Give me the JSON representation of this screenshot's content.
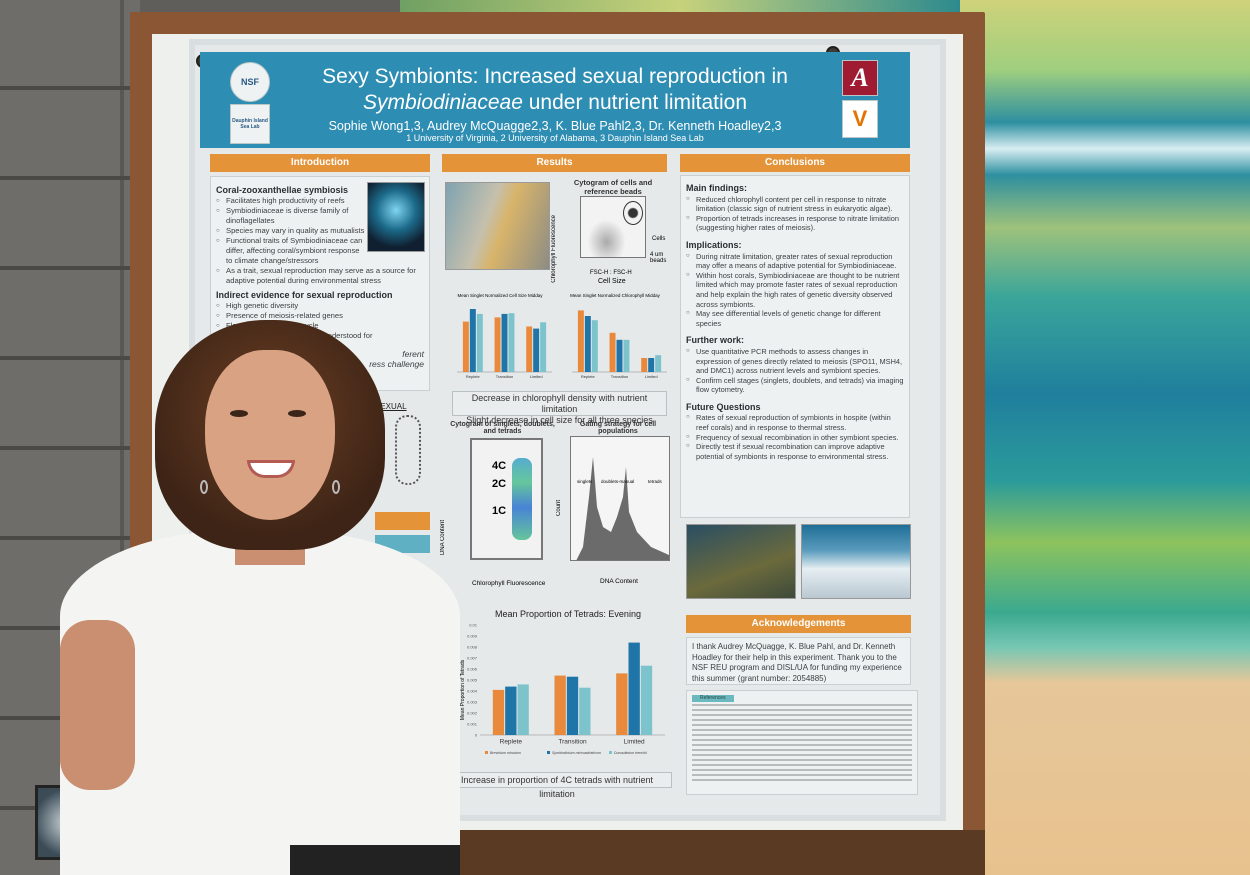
{
  "poster": {
    "title_line1": "Sexy Symbionts: Increased sexual reproduction in",
    "title_line2_italic": "Symbiodiniaceae",
    "title_line2_rest": " under nutrient limitation",
    "authors": "Sophie Wong1,3, Audrey McQuagge2,3, K. Blue Pahl2,3, Dr. Kenneth Hoadley2,3",
    "affiliations": "1 University of Virginia, 2 University of Alabama, 3 Dauphin Island Sea Lab",
    "logos": {
      "nsf": "NSF",
      "disl": "Dauphin Island Sea Lab",
      "alabama": "A",
      "virginia": "V"
    },
    "colors": {
      "header": "#2e8db3",
      "section": "#e49338",
      "bar1": "#e8893b",
      "bar2": "#1f74a8",
      "bar3": "#7cc3cc"
    }
  },
  "introduction": {
    "header": "Introduction",
    "h1": "Coral-zooxanthellae symbiosis",
    "bullets1": [
      "Facilitates high productivity of reefs",
      "Symbiodiniaceae is diverse family of dinoflagellates",
      "Species may vary in quality as mutualists",
      "Functional traits of Symbiodiniaceae can differ, affecting coral/symbiont response to climate change/stressors",
      "As a trait, sexual reproduction may serve as a source for adaptive potential during environmental stress"
    ],
    "h2": "Indirect evidence for sexual reproduction",
    "bullets2": [
      "High genetic diversity",
      "Presence of meiosis-related genes",
      "Flow cytometry of cell cycle",
      "Sexual reproduction not well understood for"
    ],
    "partial1": "ferent",
    "partial2": "ress challenge",
    "diagram_label": "SEXUAL"
  },
  "results": {
    "header": "Results",
    "cytogram1_title": "Cytogram of cells and reference beads",
    "cytogram1_ylabel": "Chlorophyll Fluorescence",
    "cytogram1_xlabel": "FSC-H : FSC-H",
    "cytogram1_xlabel2": "Cell Size",
    "label_cells": "Cells",
    "label_beads": "4 um beads",
    "chart_size_title": "Mean Singlet Normalized Cell Size Midday",
    "chart_chl_title": "Mean Singlet Normalized Chlorophyll Midday",
    "callout1_line1": "Decrease in chlorophyll density with nutrient limitation",
    "callout1_line2": "Slight decrease in cell size for all three species",
    "cytogram2_title": "Cytogram of singlets, doublets, and tetrads",
    "cytogram2_ylabel": "DNA Content",
    "cytogram2_xlabel": "Chlorophyll Fluorescence",
    "gates": [
      "4C",
      "2C",
      "1C"
    ],
    "hist_title": "Gating strategy for cell populations",
    "hist_ylabel": "Count",
    "hist_xlabel": "DNA Content",
    "hist_gates": [
      "singlets",
      "doublets-manual",
      "tetrads"
    ],
    "callout2": "Increase in proportion  of 4C tetrads with nutrient limitation"
  },
  "chart_data": [
    {
      "type": "bar",
      "title": "Mean Proportion of Tetrads: Evening",
      "ylabel": "Mean Proportion of Tetrads",
      "categories": [
        "Replete",
        "Transition",
        "Limited"
      ],
      "ylim": [
        0,
        0.01
      ],
      "yticks": [
        "0",
        "0.001",
        "0.002",
        "0.003",
        "0.004",
        "0.005",
        "0.006",
        "0.007",
        "0.008",
        "0.009",
        "0.01"
      ],
      "series": [
        {
          "name": "Breviolum minutum",
          "values": [
            0.0041,
            0.0054,
            0.0056
          ]
        },
        {
          "name": "Symbiodinium microadriaticum",
          "values": [
            0.0044,
            0.0053,
            0.0084
          ]
        },
        {
          "name": "Durusdinium trenchii",
          "values": [
            0.0046,
            0.0043,
            0.0063
          ]
        }
      ]
    },
    {
      "type": "bar",
      "title": "Mean Singlet Normalized Cell Size Midday",
      "categories": [
        "Replete",
        "Transition",
        "Limited"
      ],
      "ylim": [
        0,
        1
      ],
      "series": [
        {
          "name": "Breviolum minutum",
          "values": [
            0.72,
            0.78,
            0.65
          ]
        },
        {
          "name": "Symbiodinium microadriaticum",
          "values": [
            0.9,
            0.83,
            0.62
          ]
        },
        {
          "name": "Durusdinium trenchii",
          "values": [
            0.83,
            0.84,
            0.71
          ]
        }
      ]
    },
    {
      "type": "bar",
      "title": "Mean Singlet Normalized Chlorophyll Midday",
      "categories": [
        "Replete",
        "Transition",
        "Limited"
      ],
      "ylim": [
        0,
        25
      ],
      "series": [
        {
          "name": "Breviolum minutum",
          "values": [
            22,
            14,
            5
          ]
        },
        {
          "name": "Symbiodinium microadriaticum",
          "values": [
            20,
            11.5,
            5
          ]
        },
        {
          "name": "Durusdinium trenchii",
          "values": [
            18.5,
            11.5,
            6
          ]
        }
      ]
    }
  ],
  "conclusions": {
    "header": "Conclusions",
    "sections": [
      {
        "title": "Main findings:",
        "items": [
          "Reduced chlorophyll content per cell in response to nitrate limitation (classic sign of nutrient stress in eukaryotic algae).",
          "Proportion of tetrads increases in response to nitrate limitation (suggesting higher rates of meiosis)."
        ]
      },
      {
        "title": "Implications:",
        "items": [
          "During nitrate limitation, greater rates of sexual reproduction may offer a means of adaptive potential for Symbiodiniaceae.",
          "Within host corals, Symbiodiniaceae are thought to be nutrient limited which may promote faster rates of sexual reproduction and help explain the high rates of genetic diversity observed across symbionts.",
          "May see differential levels of genetic change for different species"
        ]
      },
      {
        "title": "Further work:",
        "items": [
          "Use quantitative PCR methods to assess changes in expression of genes directly related to meiosis (SPO11, MSH4, and DMC1) across nutrient levels and symbiont species.",
          "Confirm cell stages (singlets, doublets, and tetrads) via imaging flow cytometry."
        ]
      },
      {
        "title": "Future Questions",
        "items": [
          "Rates of sexual reproduction of symbionts in hospite (within reef corals) and in response to thermal stress.",
          "Frequency of sexual recombination in other symbiont species.",
          "Directly test if sexual recombination can improve adaptive potential of symbionts in response to environmental stress."
        ]
      }
    ],
    "acknowledgements_header": "Acknowledgements",
    "acknowledgements": "I thank Audrey McQuagge, K. Blue Pahl, and Dr. Kenneth Hoadley for their help in this experiment. Thank you to the NSF REU program and DISL/UA for funding my experience this summer (grant number: 2054885)",
    "references_header": "References"
  }
}
